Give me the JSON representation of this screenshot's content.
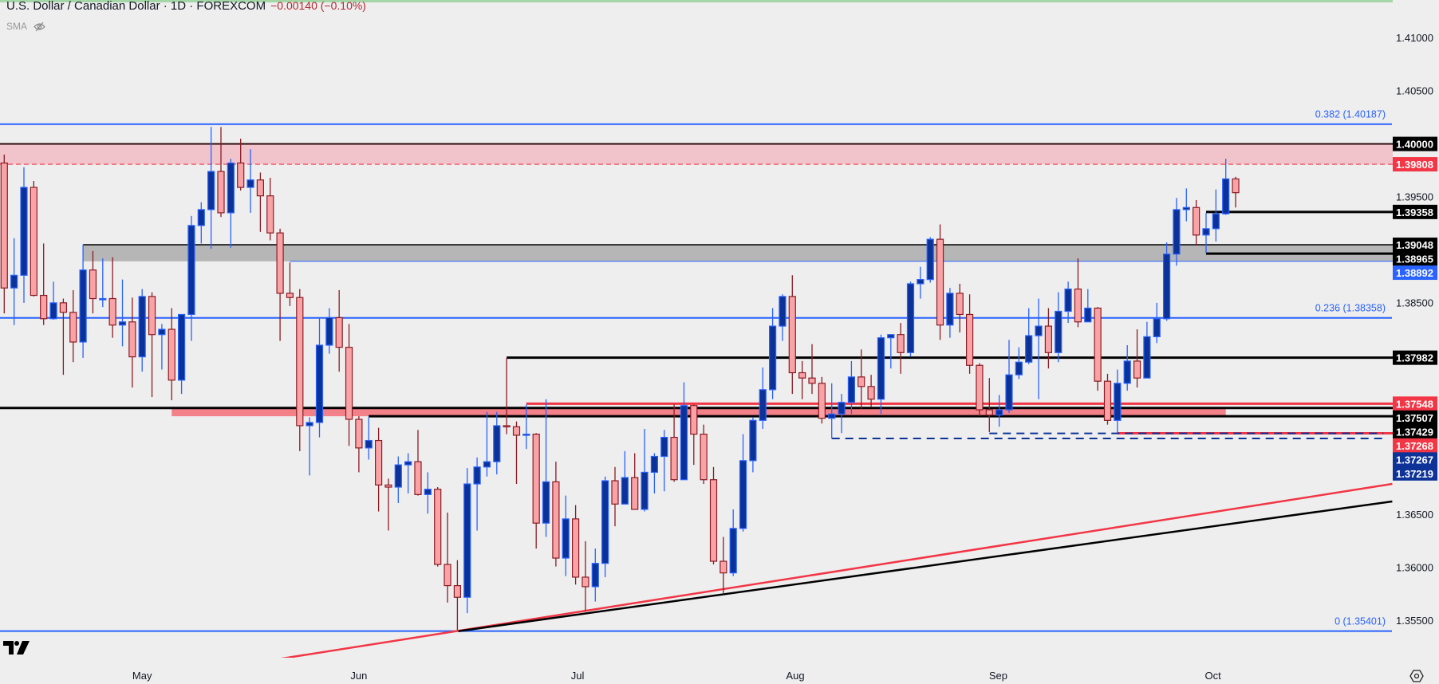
{
  "header": {
    "title": "U.S. Dollar / Canadian Dollar · 1D · FOREXCOM",
    "change": "−0.00140 (−0.10%)",
    "indicator": "SMA",
    "indicator_visibility_icon": "eye-off-icon"
  },
  "colors": {
    "bull_fill": "#0b3299",
    "bull_stroke": "#2962ff",
    "bear_fill": "#f9a3a6",
    "bear_stroke": "#8a1c24",
    "fib": "#2962ff",
    "red": "#f23645",
    "black": "#000000",
    "navy": "#0d3399",
    "background": "#eeeeee"
  },
  "chart_data": {
    "type": "candlestick",
    "symbol": "USD/CAD",
    "interval": "1D",
    "ylim": [
      1.3522,
      1.4136
    ],
    "y_ticks": [
      "1.41000",
      "1.40500",
      "1.39500",
      "1.38500",
      "1.36500",
      "1.36000",
      "1.35500"
    ],
    "x_ticks": [
      {
        "label": "May",
        "bar": 14
      },
      {
        "label": "Jun",
        "bar": 36
      },
      {
        "label": "Jul",
        "bar": 58.2
      },
      {
        "label": "Aug",
        "bar": 80.3
      },
      {
        "label": "Sep",
        "bar": 100.9
      },
      {
        "label": "Oct",
        "bar": 122.7
      }
    ],
    "ohlc": [
      [
        1.3982,
        1.399,
        1.384,
        1.3864
      ],
      [
        1.3864,
        1.3911,
        1.3829,
        1.3876
      ],
      [
        1.3876,
        1.3978,
        1.385,
        1.3959
      ],
      [
        1.3959,
        1.3965,
        1.3856,
        1.3857
      ],
      [
        1.3857,
        1.3906,
        1.3829,
        1.3835
      ],
      [
        1.3835,
        1.387,
        1.3834,
        1.385
      ],
      [
        1.385,
        1.3854,
        1.3782,
        1.3841
      ],
      [
        1.3841,
        1.3862,
        1.3794,
        1.3813
      ],
      [
        1.3813,
        1.3905,
        1.3798,
        1.3881
      ],
      [
        1.3881,
        1.3899,
        1.384,
        1.3854
      ],
      [
        1.3854,
        1.3892,
        1.3846,
        1.3854
      ],
      [
        1.3854,
        1.3893,
        1.3817,
        1.3829
      ],
      [
        1.3829,
        1.3872,
        1.3809,
        1.3832
      ],
      [
        1.3832,
        1.3855,
        1.377,
        1.3799
      ],
      [
        1.3799,
        1.3863,
        1.3785,
        1.3856
      ],
      [
        1.3856,
        1.386,
        1.3761,
        1.382
      ],
      [
        1.382,
        1.383,
        1.3787,
        1.3825
      ],
      [
        1.3825,
        1.3845,
        1.3758,
        1.3777
      ],
      [
        1.3777,
        1.3839,
        1.3764,
        1.3839
      ],
      [
        1.3839,
        1.3932,
        1.3814,
        1.3923
      ],
      [
        1.3923,
        1.3945,
        1.3906,
        1.3938
      ],
      [
        1.3938,
        1.4016,
        1.3901,
        1.3974
      ],
      [
        1.3974,
        1.4016,
        1.3931,
        1.3935
      ],
      [
        1.3935,
        1.3986,
        1.3902,
        1.3982
      ],
      [
        1.3982,
        1.4005,
        1.3956,
        1.3959
      ],
      [
        1.3959,
        1.3995,
        1.3935,
        1.3966
      ],
      [
        1.3966,
        1.3973,
        1.3917,
        1.3951
      ],
      [
        1.3951,
        1.3968,
        1.3909,
        1.3916
      ],
      [
        1.3916,
        1.392,
        1.3814,
        1.3859
      ],
      [
        1.3859,
        1.3888,
        1.3847,
        1.3855
      ],
      [
        1.3855,
        1.3863,
        1.371,
        1.3734
      ],
      [
        1.3734,
        1.3742,
        1.3687,
        1.3737
      ],
      [
        1.3737,
        1.3836,
        1.3723,
        1.381
      ],
      [
        1.381,
        1.3845,
        1.3802,
        1.3836
      ],
      [
        1.3836,
        1.3862,
        1.3785,
        1.3808
      ],
      [
        1.3808,
        1.383,
        1.3715,
        1.374
      ],
      [
        1.374,
        1.3743,
        1.369,
        1.3713
      ],
      [
        1.3713,
        1.3742,
        1.3702,
        1.372
      ],
      [
        1.372,
        1.3732,
        1.3653,
        1.3678
      ],
      [
        1.3678,
        1.3684,
        1.3635,
        1.3676
      ],
      [
        1.3676,
        1.3705,
        1.3661,
        1.3697
      ],
      [
        1.3697,
        1.3708,
        1.367,
        1.37
      ],
      [
        1.37,
        1.373,
        1.3668,
        1.3669
      ],
      [
        1.3669,
        1.369,
        1.3651,
        1.3674
      ],
      [
        1.3674,
        1.3676,
        1.3601,
        1.3603
      ],
      [
        1.3603,
        1.3652,
        1.3567,
        1.3583
      ],
      [
        1.3583,
        1.3607,
        1.3541,
        1.3572
      ],
      [
        1.3572,
        1.3694,
        1.3557,
        1.3679
      ],
      [
        1.3679,
        1.3704,
        1.3635,
        1.3695
      ],
      [
        1.3695,
        1.3747,
        1.3686,
        1.37
      ],
      [
        1.37,
        1.3747,
        1.3688,
        1.3734
      ],
      [
        1.3734,
        1.3798,
        1.3726,
        1.3733
      ],
      [
        1.3733,
        1.3738,
        1.3679,
        1.3725
      ],
      [
        1.3726,
        1.3754,
        1.3712,
        1.3726
      ],
      [
        1.3726,
        1.3727,
        1.3618,
        1.3642
      ],
      [
        1.3642,
        1.3759,
        1.3629,
        1.3681
      ],
      [
        1.3681,
        1.37,
        1.3601,
        1.3609
      ],
      [
        1.3609,
        1.3668,
        1.3592,
        1.3646
      ],
      [
        1.3646,
        1.3659,
        1.3584,
        1.3591
      ],
      [
        1.3591,
        1.3625,
        1.3559,
        1.3582
      ],
      [
        1.3582,
        1.3618,
        1.3568,
        1.3604
      ],
      [
        1.3604,
        1.3686,
        1.3591,
        1.3682
      ],
      [
        1.3682,
        1.3695,
        1.3639,
        1.366
      ],
      [
        1.366,
        1.371,
        1.366,
        1.3685
      ],
      [
        1.3685,
        1.3708,
        1.3655,
        1.3655
      ],
      [
        1.3655,
        1.3731,
        1.3653,
        1.369
      ],
      [
        1.369,
        1.3708,
        1.367,
        1.3705
      ],
      [
        1.3705,
        1.373,
        1.3672,
        1.3723
      ],
      [
        1.3723,
        1.3754,
        1.3681,
        1.3683
      ],
      [
        1.3683,
        1.3775,
        1.3683,
        1.3753
      ],
      [
        1.3753,
        1.3754,
        1.3697,
        1.3726
      ],
      [
        1.3726,
        1.3735,
        1.3679,
        1.3683
      ],
      [
        1.3683,
        1.3695,
        1.3603,
        1.3606
      ],
      [
        1.3606,
        1.3629,
        1.3576,
        1.3595
      ],
      [
        1.3595,
        1.3655,
        1.3592,
        1.3637
      ],
      [
        1.3637,
        1.3726,
        1.3634,
        1.3701
      ],
      [
        1.3701,
        1.3742,
        1.369,
        1.3739
      ],
      [
        1.3739,
        1.3789,
        1.3731,
        1.3768
      ],
      [
        1.3768,
        1.3845,
        1.3759,
        1.3828
      ],
      [
        1.3828,
        1.3858,
        1.3814,
        1.3856
      ],
      [
        1.3856,
        1.3876,
        1.3764,
        1.3784
      ],
      [
        1.3784,
        1.3795,
        1.3759,
        1.3779
      ],
      [
        1.3779,
        1.3811,
        1.3764,
        1.3774
      ],
      [
        1.3774,
        1.378,
        1.3736,
        1.3741
      ],
      [
        1.3741,
        1.3774,
        1.3722,
        1.3745
      ],
      [
        1.3745,
        1.3764,
        1.3727,
        1.3756
      ],
      [
        1.3756,
        1.3795,
        1.3745,
        1.378
      ],
      [
        1.378,
        1.3806,
        1.375,
        1.3771
      ],
      [
        1.3771,
        1.3782,
        1.3752,
        1.3759
      ],
      [
        1.3759,
        1.382,
        1.3745,
        1.3817
      ],
      [
        1.3817,
        1.382,
        1.3788,
        1.382
      ],
      [
        1.382,
        1.3831,
        1.3783,
        1.3803
      ],
      [
        1.3803,
        1.387,
        1.3799,
        1.3868
      ],
      [
        1.3868,
        1.3884,
        1.3854,
        1.3872
      ],
      [
        1.3872,
        1.3912,
        1.3869,
        1.391
      ],
      [
        1.391,
        1.3924,
        1.3815,
        1.3829
      ],
      [
        1.3829,
        1.3864,
        1.3817,
        1.3859
      ],
      [
        1.3859,
        1.3868,
        1.3822,
        1.3839
      ],
      [
        1.3839,
        1.3858,
        1.3783,
        1.3791
      ],
      [
        1.3791,
        1.3793,
        1.3743,
        1.3749
      ],
      [
        1.3749,
        1.3779,
        1.3728,
        1.3744
      ],
      [
        1.3744,
        1.3763,
        1.3733,
        1.3749
      ],
      [
        1.3749,
        1.3815,
        1.3746,
        1.3782
      ],
      [
        1.3782,
        1.3808,
        1.3778,
        1.3794
      ],
      [
        1.3794,
        1.3845,
        1.3792,
        1.3819
      ],
      [
        1.3819,
        1.3854,
        1.3759,
        1.3828
      ],
      [
        1.3828,
        1.3845,
        1.3788,
        1.3803
      ],
      [
        1.3803,
        1.386,
        1.3794,
        1.3842
      ],
      [
        1.3842,
        1.387,
        1.3831,
        1.3863
      ],
      [
        1.3863,
        1.3892,
        1.3827,
        1.3832
      ],
      [
        1.3832,
        1.3863,
        1.3832,
        1.3845
      ],
      [
        1.3845,
        1.3846,
        1.3767,
        1.3776
      ],
      [
        1.3776,
        1.3783,
        1.3735,
        1.3739
      ],
      [
        1.3739,
        1.3787,
        1.3727,
        1.3774
      ],
      [
        1.3774,
        1.381,
        1.3767,
        1.3795
      ],
      [
        1.3795,
        1.3825,
        1.377,
        1.3779
      ],
      [
        1.3779,
        1.3832,
        1.3779,
        1.3818
      ],
      [
        1.3818,
        1.385,
        1.3812,
        1.3835
      ],
      [
        1.3835,
        1.3907,
        1.3833,
        1.3896
      ],
      [
        1.3896,
        1.3949,
        1.3885,
        1.3938
      ],
      [
        1.3938,
        1.3958,
        1.3927,
        1.394
      ],
      [
        1.394,
        1.3947,
        1.3904,
        1.3914
      ],
      [
        1.3914,
        1.3935,
        1.3897,
        1.392
      ],
      [
        1.392,
        1.3957,
        1.3908,
        1.3934
      ],
      [
        1.3934,
        1.3986,
        1.3933,
        1.3967
      ],
      [
        1.3967,
        1.3969,
        1.394,
        1.3954
      ]
    ],
    "zones": [
      {
        "name": "resistance-zone",
        "from": 1.39808,
        "to": 1.4,
        "color": "#f0c4ca"
      },
      {
        "name": "gray-zone",
        "from": 1.38892,
        "to": 1.39048,
        "color": "#b6b6b6",
        "from_bar": 8
      },
      {
        "name": "support-zone",
        "from": 1.37429,
        "to": 1.37507,
        "color": "#f28189",
        "from_bar": 17,
        "to_bar": 124
      }
    ],
    "levels": [
      {
        "price": 1.40187,
        "label": "0.382 (1.40187)",
        "kind": "fib",
        "color": "#2962ff"
      },
      {
        "price": 1.4,
        "label": "1.40000",
        "color": "#2a0a0c",
        "label_bg": "#000000",
        "width": 2
      },
      {
        "price": 1.39808,
        "label": "1.39808",
        "color": "#f23645",
        "label_bg": "#f23645",
        "dashed": true,
        "width": 1.2
      },
      {
        "price": 1.39358,
        "label": "1.39358",
        "color": "#000000",
        "label_bg": "#000000",
        "width": 3,
        "from_bar": 122
      },
      {
        "price": 1.39048,
        "label": "1.39048",
        "color": "#000000",
        "label_bg": "#000000",
        "width": 1.5,
        "from_bar": 8
      },
      {
        "price": 1.38965,
        "label": "1.38965",
        "color": "#000000",
        "label_bg": "#000000",
        "width": 3,
        "from_bar": 122
      },
      {
        "price": 1.38892,
        "label": "1.38892",
        "color": "#2962ff",
        "label_bg": "#2962ff",
        "width": 1,
        "from_bar": 29
      },
      {
        "price": 1.38358,
        "label": "0.236 (1.38358)",
        "kind": "fib",
        "color": "#2962ff"
      },
      {
        "price": 1.37982,
        "label": "1.37982",
        "color": "#000000",
        "label_bg": "#000000",
        "width": 3,
        "from_bar": 51
      },
      {
        "price": 1.37548,
        "label": "1.37548",
        "color": "#f23645",
        "label_bg": "#f23645",
        "width": 3,
        "from_bar": 53
      },
      {
        "price": 1.37507,
        "label": "1.37507",
        "color": "#000000",
        "label_bg": "#000000",
        "width": 3
      },
      {
        "price": 1.37429,
        "label": "1.37429",
        "color": "#000000",
        "label_bg": "#000000",
        "width": 3,
        "from_bar": 37
      },
      {
        "price": 1.37268,
        "label": "1.37268",
        "color": "#f23645",
        "label_bg": "#f23645",
        "width": 3,
        "from_bar": 113
      },
      {
        "price": 1.37267,
        "label": "1.37267",
        "color": "#0d3399",
        "label_bg": "#0d3399",
        "width": 2,
        "dashed": true,
        "from_bar": 100,
        "to_bar": 140
      },
      {
        "price": 1.37219,
        "label": "1.37219",
        "color": "#0d3399",
        "label_bg": "#0d3399",
        "width": 2,
        "dashed": true,
        "from_bar": 84,
        "to_bar": 140
      },
      {
        "price": 1.35401,
        "label": "0 (1.35401)",
        "kind": "fib",
        "color": "#2962ff"
      }
    ],
    "trendlines": [
      {
        "name": "red-trendline",
        "color": "#f23645",
        "from": {
          "bar": 23.3,
          "price": 1.3507
        },
        "to": {
          "bar": 140.9,
          "price": 1.3679
        }
      },
      {
        "name": "black-trendline",
        "color": "#000000",
        "from": {
          "bar": 46.1,
          "price": 1.354
        },
        "to": {
          "bar": 140.9,
          "price": 1.36625
        }
      }
    ]
  }
}
